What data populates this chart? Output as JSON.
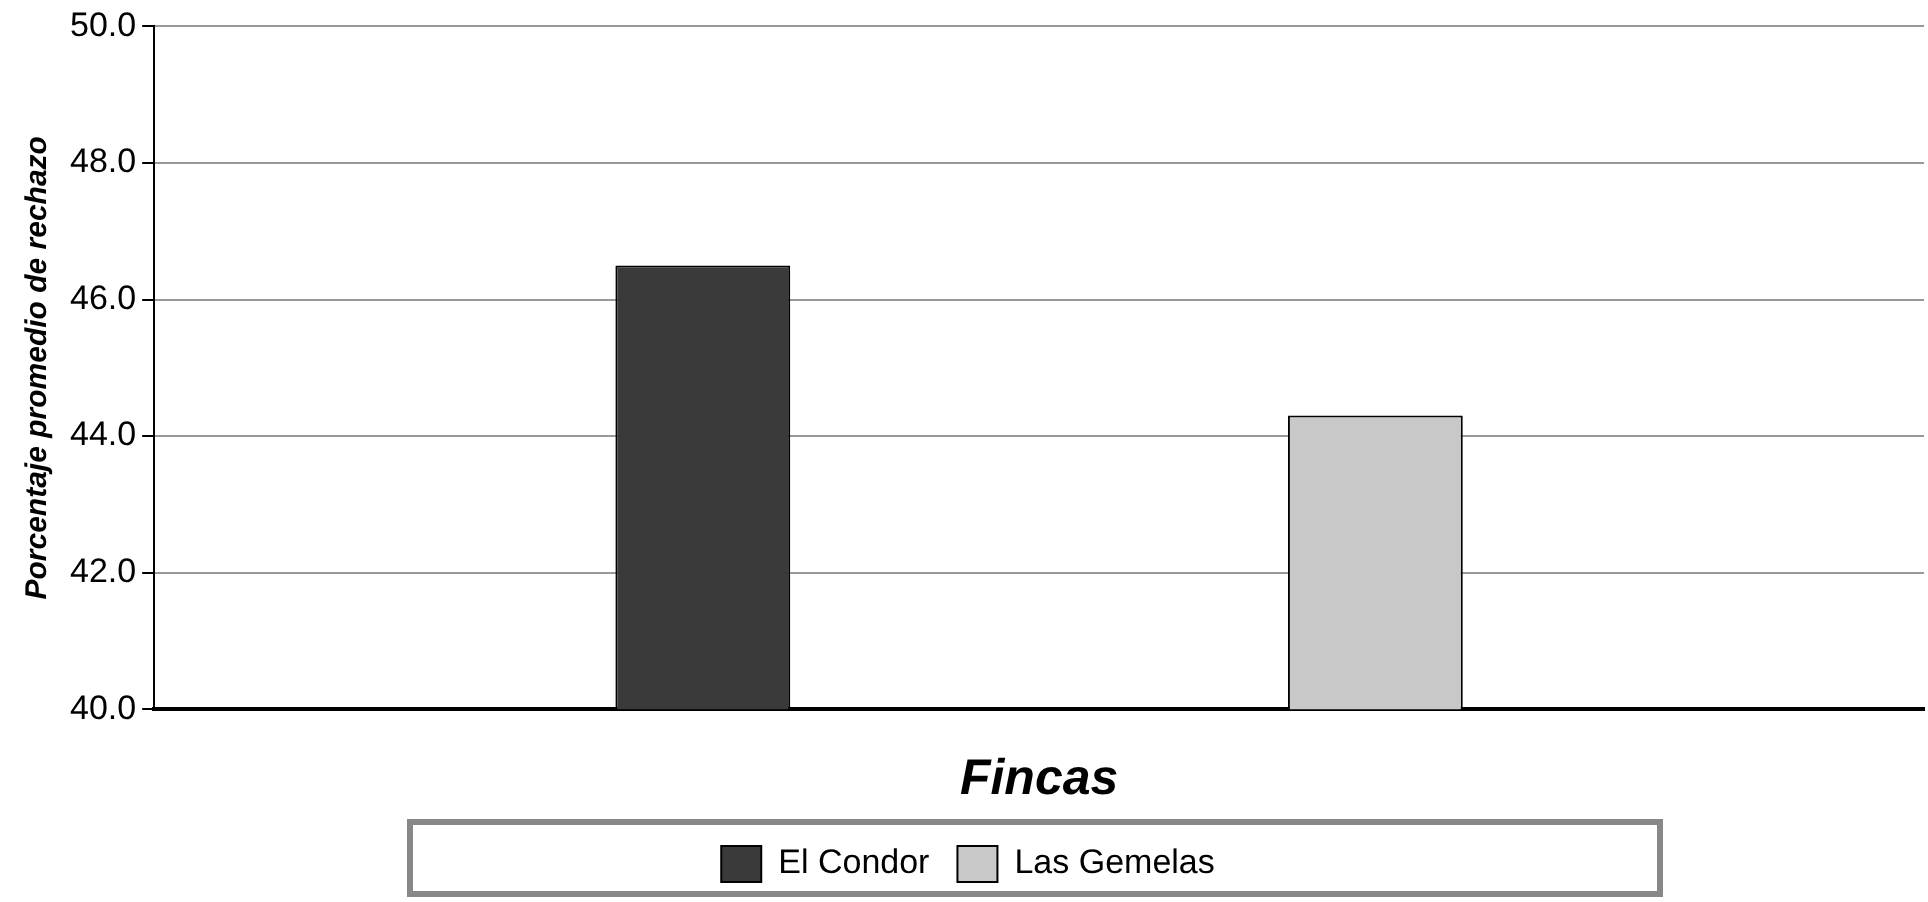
{
  "chart_data": {
    "type": "bar",
    "xlabel": "Fincas",
    "ylabel": "Porcentaje promedio de rechazo",
    "categories": [
      null
    ],
    "series": [
      {
        "name": "El Condor",
        "color": "#3a3a3a",
        "values": [
          46.5
        ]
      },
      {
        "name": "Las Gemelas",
        "color": "#c8c8c8",
        "values": [
          44.3
        ]
      }
    ],
    "ylim": [
      40,
      50
    ],
    "yticks": [
      {
        "value": 40,
        "label": "40.0"
      },
      {
        "value": 42,
        "label": "42.0"
      },
      {
        "value": 44,
        "label": "44.0"
      },
      {
        "value": 46,
        "label": "46.0"
      },
      {
        "value": 48,
        "label": "48.0"
      },
      {
        "value": 50,
        "label": "50.0"
      }
    ],
    "grid": "y",
    "legend": "bottom"
  }
}
